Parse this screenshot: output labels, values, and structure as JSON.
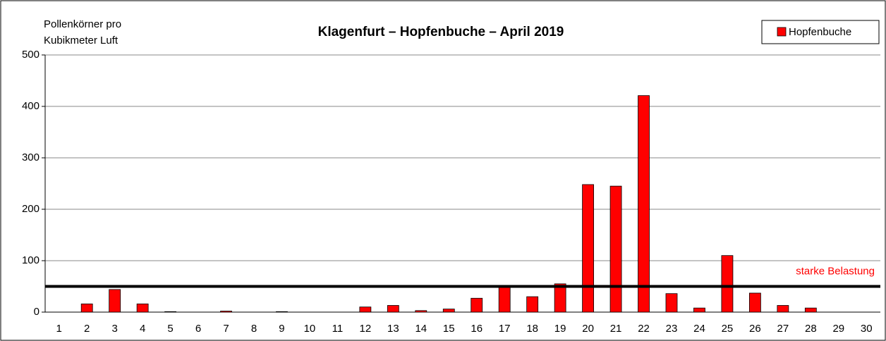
{
  "chart_data": {
    "type": "bar",
    "title": "Klagenfurt – Hopfenbuche – April 2019",
    "y_label": [
      "Pollenkörner pro",
      "Kubikmeter Luft"
    ],
    "categories": [
      "1",
      "2",
      "3",
      "4",
      "5",
      "6",
      "7",
      "8",
      "9",
      "10",
      "11",
      "12",
      "13",
      "14",
      "15",
      "16",
      "17",
      "18",
      "19",
      "20",
      "21",
      "22",
      "23",
      "24",
      "25",
      "26",
      "27",
      "28",
      "29",
      "30"
    ],
    "series": [
      {
        "name": "Hopfenbuche",
        "color": "#ff0000",
        "values": [
          0,
          16,
          44,
          16,
          1,
          0,
          2,
          0,
          1,
          0,
          0,
          10,
          13,
          3,
          6,
          27,
          48,
          30,
          55,
          248,
          245,
          421,
          36,
          8,
          110,
          37,
          13,
          8,
          0,
          0
        ]
      }
    ],
    "ylim": [
      0,
      500
    ],
    "yticks": [
      0,
      100,
      200,
      300,
      400,
      500
    ],
    "grid": true,
    "legend": "top-right",
    "threshold": {
      "value": 50,
      "label": "starke Belastung",
      "label_color": "#ff0000"
    }
  }
}
